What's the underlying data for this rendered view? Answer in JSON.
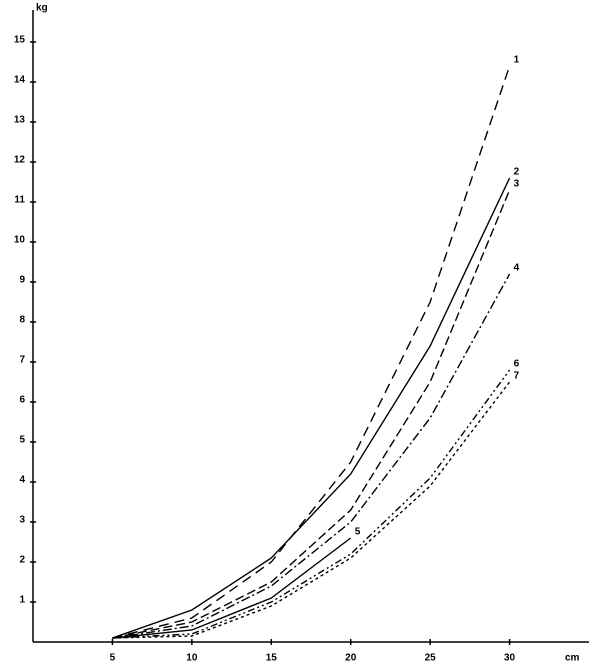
{
  "chart_data": {
    "type": "line",
    "x_label": "cm",
    "y_label": "kg",
    "x": [
      5,
      10,
      15,
      20,
      25,
      30
    ],
    "xlim": [
      0,
      35
    ],
    "xticks": [
      5,
      10,
      15,
      20,
      25,
      30
    ],
    "ylim": [
      0,
      15.8
    ],
    "yticks": [
      1,
      2,
      3,
      4,
      5,
      6,
      7,
      8,
      9,
      10,
      11,
      12,
      13,
      14,
      15
    ],
    "series": [
      {
        "name": "1",
        "color": "#000000",
        "dash": "10,6",
        "values": [
          0.1,
          0.6,
          2.0,
          4.5,
          8.5,
          14.4
        ]
      },
      {
        "name": "2",
        "color": "#000000",
        "dash": "none",
        "values": [
          0.1,
          0.8,
          2.1,
          4.2,
          7.4,
          11.6
        ]
      },
      {
        "name": "3",
        "color": "#000000",
        "dash": "9,4",
        "values": [
          0.1,
          0.5,
          1.5,
          3.3,
          6.5,
          11.3
        ]
      },
      {
        "name": "4",
        "color": "#000000",
        "dash": "9,3,2,3",
        "values": [
          0.1,
          0.4,
          1.4,
          3.0,
          5.6,
          9.2
        ]
      },
      {
        "name": "5",
        "color": "#000000",
        "dash": "none",
        "values": [
          0.1,
          0.3,
          1.1,
          2.6,
          null,
          null
        ]
      },
      {
        "name": "6",
        "color": "#000000",
        "dash": "7,3,2,3,2,3",
        "values": [
          0.1,
          0.2,
          1.0,
          2.2,
          4.1,
          6.8
        ]
      },
      {
        "name": "7",
        "color": "#000000",
        "dash": "3,3",
        "values": [
          0.1,
          0.15,
          0.9,
          2.1,
          3.9,
          6.5
        ]
      }
    ]
  }
}
